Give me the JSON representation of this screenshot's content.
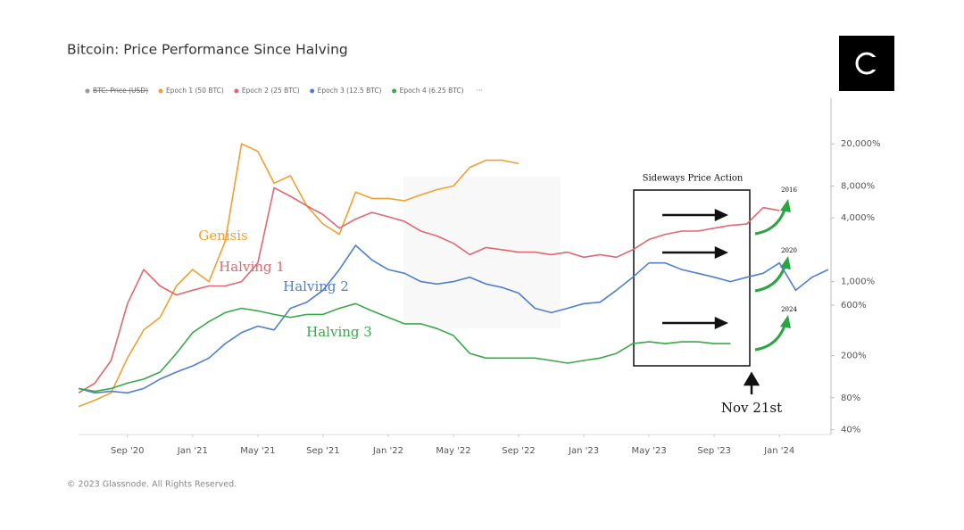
{
  "chart_data": {
    "type": "line",
    "title": "Bitcoin: Price Performance Since Halving",
    "footer": "© 2023 Glassnode. All Rights Reserved.",
    "legend_hidden": "BTC: Price (USD)",
    "legend_more": "···",
    "annotations": [
      "Genisis",
      "Halving 1",
      "Halving 2",
      "Halving 3"
    ],
    "box_label": "Sideways Price Action",
    "arrow_labels": [
      "2016",
      "2020",
      "2024"
    ],
    "date_note": "Nov 21st",
    "log_scale": true,
    "x": [
      "2020-06",
      "2020-07",
      "2020-08",
      "2020-09",
      "2020-10",
      "2020-11",
      "2020-12",
      "2021-01",
      "2021-02",
      "2021-03",
      "2021-04",
      "2021-05",
      "2021-06",
      "2021-07",
      "2021-08",
      "2021-09",
      "2021-10",
      "2021-11",
      "2021-12",
      "2022-01",
      "2022-02",
      "2022-03",
      "2022-04",
      "2022-05",
      "2022-06",
      "2022-07",
      "2022-08",
      "2022-09",
      "2022-10",
      "2022-11",
      "2022-12",
      "2023-01",
      "2023-02",
      "2023-03",
      "2023-04",
      "2023-05",
      "2023-06",
      "2023-07",
      "2023-08",
      "2023-09",
      "2023-10",
      "2023-11",
      "2023-12",
      "2024-01",
      "2024-02",
      "2024-03",
      "2024-04"
    ],
    "xlim": [
      "2020-06",
      "2024-04"
    ],
    "xticks": [
      {
        "value": "2020-09",
        "label": "Sep '20"
      },
      {
        "value": "2021-01",
        "label": "Jan '21"
      },
      {
        "value": "2021-05",
        "label": "May '21"
      },
      {
        "value": "2021-09",
        "label": "Sep '21"
      },
      {
        "value": "2022-01",
        "label": "Jan '22"
      },
      {
        "value": "2022-05",
        "label": "May '22"
      },
      {
        "value": "2022-09",
        "label": "Sep '22"
      },
      {
        "value": "2023-01",
        "label": "Jan '23"
      },
      {
        "value": "2023-05",
        "label": "May '23"
      },
      {
        "value": "2023-09",
        "label": "Sep '23"
      },
      {
        "value": "2024-01",
        "label": "Jan '24"
      }
    ],
    "ylim": [
      36,
      50000
    ],
    "yticks": [
      {
        "value": 40,
        "label": "40%"
      },
      {
        "value": 80,
        "label": "80%"
      },
      {
        "value": 200,
        "label": "200%"
      },
      {
        "value": 600,
        "label": "600%"
      },
      {
        "value": 1000,
        "label": "1,000%"
      },
      {
        "value": 4000,
        "label": "4,000%"
      },
      {
        "value": 8000,
        "label": "8,000%"
      },
      {
        "value": 20000,
        "label": "20,000%"
      }
    ],
    "series": [
      {
        "name": "Epoch 1 (50 BTC)",
        "color": "#f0a030",
        "values": [
          66,
          76,
          89,
          190,
          350,
          460,
          910,
          1300,
          1000,
          2400,
          20000,
          17000,
          8500,
          10000,
          5200,
          3500,
          2800,
          7000,
          6100,
          6100,
          5800,
          6600,
          7400,
          8000,
          12000,
          14000,
          14000,
          13000,
          null,
          null,
          null,
          null,
          null,
          null,
          null,
          null,
          null,
          null,
          null,
          null,
          null,
          null,
          null,
          null,
          null,
          null,
          null
        ]
      },
      {
        "name": "Epoch 2 (25 BTC)",
        "color": "#e06870",
        "values": [
          89,
          110,
          180,
          620,
          1300,
          910,
          750,
          830,
          910,
          910,
          1000,
          1500,
          7700,
          6400,
          5200,
          4300,
          3200,
          3900,
          4500,
          4100,
          3700,
          3000,
          2700,
          2300,
          1800,
          2100,
          2000,
          1900,
          1900,
          1800,
          1900,
          1700,
          1800,
          1700,
          2000,
          2500,
          2800,
          3000,
          3000,
          3200,
          3400,
          3500,
          5000,
          4700,
          null,
          null,
          null
        ]
      },
      {
        "name": "Epoch 3 (12.5 BTC)",
        "color": "#4f7fd0",
        "values": [
          98,
          89,
          92,
          89,
          98,
          120,
          140,
          160,
          190,
          260,
          330,
          380,
          350,
          560,
          640,
          830,
          1300,
          2200,
          1600,
          1300,
          1200,
          1000,
          950,
          1000,
          1100,
          950,
          880,
          780,
          560,
          510,
          560,
          620,
          640,
          830,
          1100,
          1500,
          1500,
          1300,
          1200,
          1100,
          1000,
          1100,
          1200,
          1500,
          830,
          1100,
          1300
        ]
      },
      {
        "name": "Epoch 4 (6.25 BTC)",
        "color": "#3aa84a",
        "values": [
          98,
          92,
          98,
          110,
          120,
          140,
          210,
          330,
          420,
          510,
          560,
          530,
          490,
          460,
          490,
          490,
          560,
          620,
          530,
          460,
          400,
          400,
          360,
          310,
          210,
          190,
          190,
          190,
          190,
          180,
          170,
          180,
          190,
          210,
          260,
          270,
          260,
          270,
          270,
          260,
          260,
          null,
          null,
          null,
          null,
          null,
          null
        ]
      }
    ]
  }
}
